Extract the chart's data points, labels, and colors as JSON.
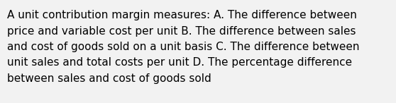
{
  "background_color": "#f2f2f2",
  "text_color": "#000000",
  "lines": [
    "A unit contribution margin measures: A. The difference between",
    "price and variable cost per unit B. The difference between sales",
    "and cost of goods sold on a unit basis C. The difference between",
    "unit sales and total costs per unit D. The percentage difference",
    "between sales and cost of goods sold"
  ],
  "font_size": 11.0,
  "figsize": [
    5.58,
    1.46
  ],
  "dpi": 100
}
